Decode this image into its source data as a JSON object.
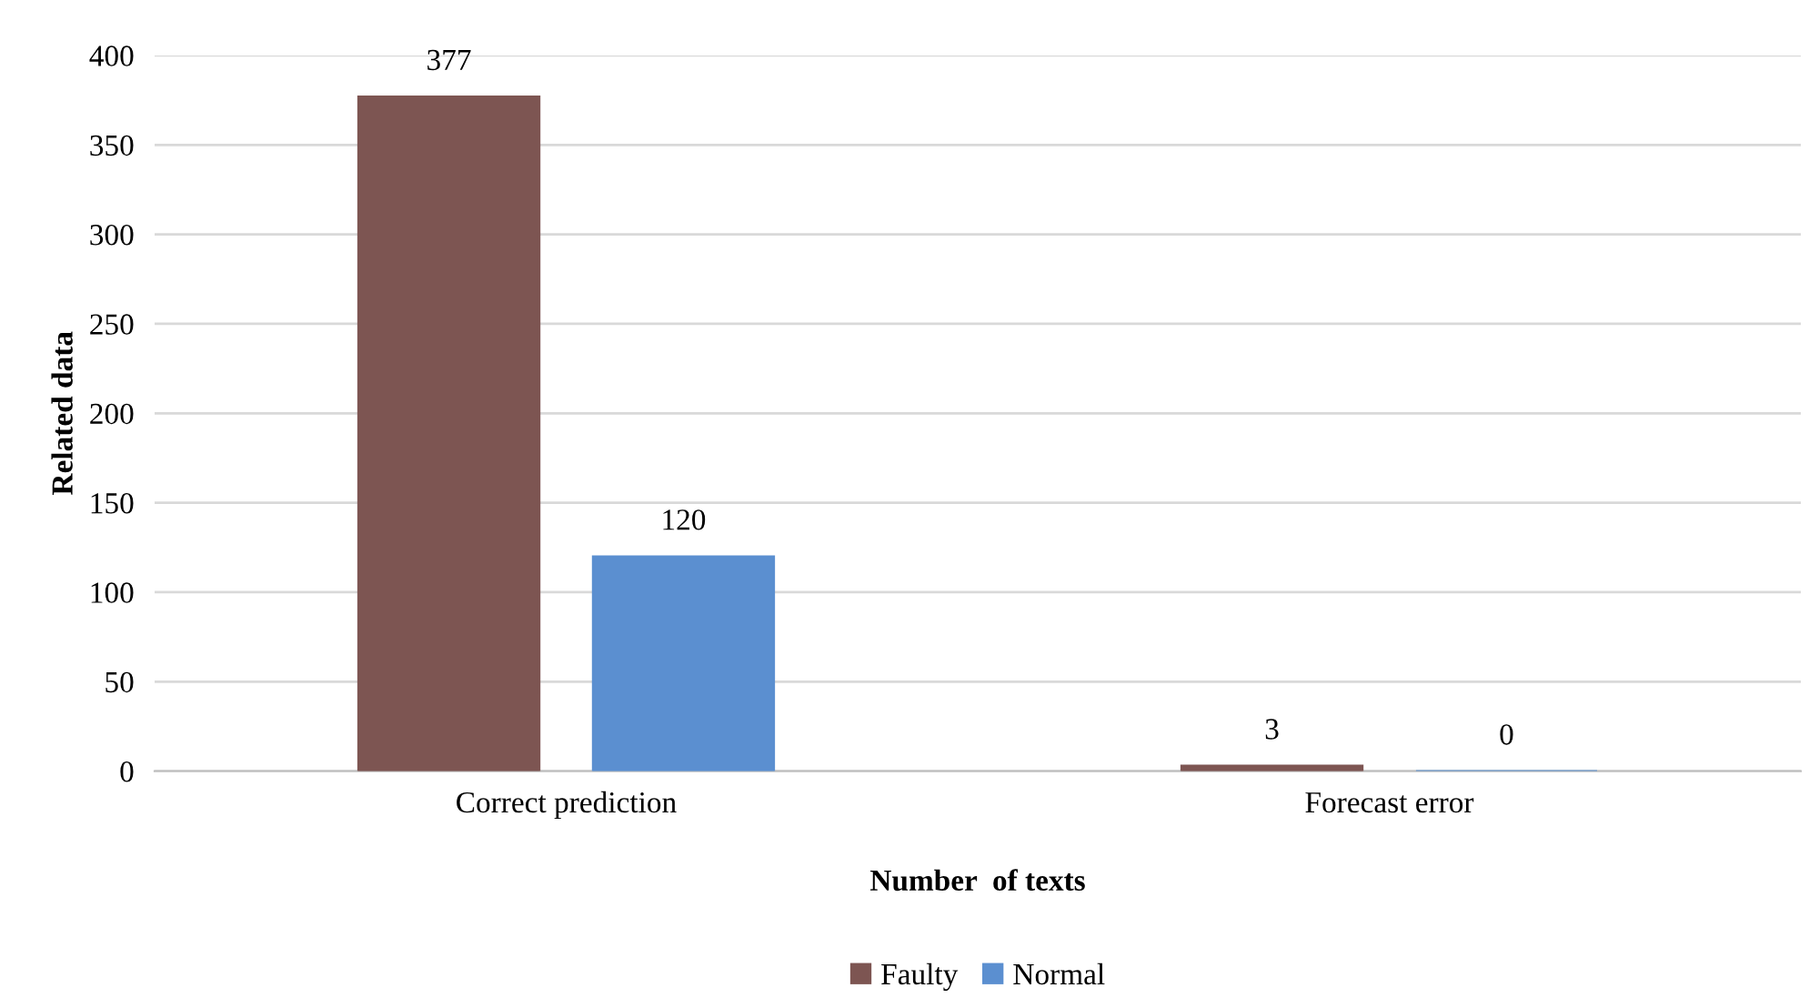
{
  "chart_data": {
    "type": "bar",
    "xlabel": "Number  of texts",
    "ylabel": "Related data",
    "categories": [
      "Correct prediction",
      "Forecast error"
    ],
    "series": [
      {
        "name": "Faulty",
        "color": "#7d5552",
        "values": [
          377,
          3
        ]
      },
      {
        "name": "Normal",
        "color": "#5b8fd0",
        "values": [
          120,
          0
        ]
      }
    ],
    "ylim": [
      0,
      400
    ],
    "yticks": [
      0,
      50,
      100,
      150,
      200,
      250,
      300,
      350,
      400
    ],
    "grid": "y",
    "legend": "bottom",
    "data_labels": true
  }
}
